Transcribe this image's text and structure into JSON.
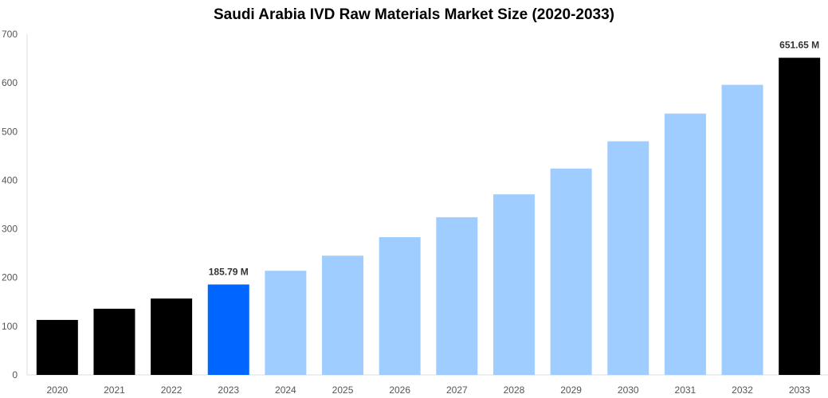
{
  "chart_data": {
    "type": "bar",
    "title": "Saudi Arabia IVD Raw Materials Market Size (2020-2033)",
    "xlabel": "",
    "ylabel": "",
    "ylim": [
      0,
      700
    ],
    "yticks": [
      0,
      100,
      200,
      300,
      400,
      500,
      600,
      700
    ],
    "grid": false,
    "categories": [
      "2020",
      "2021",
      "2022",
      "2023",
      "2024",
      "2025",
      "2026",
      "2027",
      "2028",
      "2029",
      "2030",
      "2031",
      "2032",
      "2033"
    ],
    "values": [
      113,
      136,
      157,
      185.79,
      214,
      245,
      283,
      324,
      371,
      424,
      480,
      537,
      596,
      651.65
    ],
    "colors": [
      "#000000",
      "#000000",
      "#000000",
      "#0066ff",
      "#a0cdff",
      "#a0cdff",
      "#a0cdff",
      "#a0cdff",
      "#a0cdff",
      "#a0cdff",
      "#a0cdff",
      "#a0cdff",
      "#a0cdff",
      "#000000"
    ],
    "data_labels": [
      {
        "category": "2023",
        "text": "185.79 M"
      },
      {
        "category": "2033",
        "text": "651.65 M"
      }
    ]
  }
}
